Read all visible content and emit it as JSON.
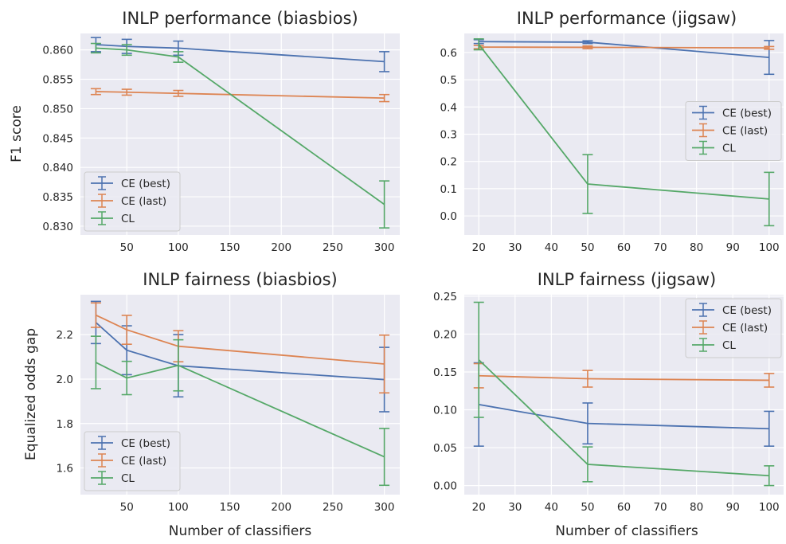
{
  "figure": {
    "colors": {
      "ce_best": "#4c72b0",
      "ce_last": "#dd8452",
      "cl": "#55a868",
      "panel_bg": "#eaeaf2",
      "grid": "#ffffff"
    },
    "ylabel_row1": "F1 score",
    "ylabel_row2": "Equalized odds gap",
    "xlabel": "Number of classifiers"
  },
  "chart_data": [
    {
      "type": "line",
      "title": "INLP performance (biasbios)",
      "xlabel": "",
      "ylabel": "F1 score",
      "x": [
        20,
        50,
        100,
        300
      ],
      "xlim": [
        5,
        315
      ],
      "ylim": [
        0.8285,
        0.8628
      ],
      "xticks": [
        50,
        100,
        150,
        200,
        250,
        300
      ],
      "yticks": [
        0.83,
        0.835,
        0.84,
        0.845,
        0.85,
        0.855,
        0.86
      ],
      "ytick_labels": [
        "0.830",
        "0.835",
        "0.840",
        "0.845",
        "0.850",
        "0.855",
        "0.860"
      ],
      "grid": true,
      "legend": "lower-left",
      "series": [
        {
          "name": "CE (best)",
          "values": [
            0.8609,
            0.8606,
            0.8603,
            0.858
          ],
          "err": [
            0.0012,
            0.0012,
            0.0012,
            0.0017
          ]
        },
        {
          "name": "CE (last)",
          "values": [
            0.8529,
            0.8528,
            0.8526,
            0.8518
          ],
          "err": [
            0.0005,
            0.0005,
            0.0005,
            0.0006
          ]
        },
        {
          "name": "CL",
          "values": [
            0.8603,
            0.86,
            0.8588,
            0.8337
          ],
          "err": [
            0.0008,
            0.0009,
            0.0009,
            0.004
          ]
        }
      ]
    },
    {
      "type": "line",
      "title": "INLP performance (jigsaw)",
      "xlabel": "",
      "ylabel": "",
      "x": [
        20,
        50,
        100
      ],
      "xlim": [
        16,
        104
      ],
      "ylim": [
        -0.07,
        0.67
      ],
      "xticks": [
        20,
        30,
        40,
        50,
        60,
        70,
        80,
        90,
        100
      ],
      "yticks": [
        0.0,
        0.1,
        0.2,
        0.3,
        0.4,
        0.5,
        0.6
      ],
      "ytick_labels": [
        "0.0",
        "0.1",
        "0.2",
        "0.3",
        "0.4",
        "0.5",
        "0.6"
      ],
      "grid": true,
      "legend": "center-right",
      "series": [
        {
          "name": "CE (best)",
          "values": [
            0.64,
            0.638,
            0.582
          ],
          "err": [
            0.007,
            0.005,
            0.062
          ]
        },
        {
          "name": "CE (last)",
          "values": [
            0.62,
            0.619,
            0.617
          ],
          "err": [
            0.006,
            0.005,
            0.005
          ]
        },
        {
          "name": "CL",
          "values": [
            0.63,
            0.117,
            0.062
          ],
          "err": [
            0.02,
            0.108,
            0.098
          ]
        }
      ]
    },
    {
      "type": "line",
      "title": "INLP fairness (biasbios)",
      "xlabel": "Number of classifiers",
      "ylabel": "Equalized odds gap",
      "x": [
        20,
        50,
        100,
        300
      ],
      "xlim": [
        5,
        315
      ],
      "ylim": [
        1.48,
        2.38
      ],
      "xticks": [
        50,
        100,
        150,
        200,
        250,
        300
      ],
      "yticks": [
        1.6,
        1.8,
        2.0,
        2.2
      ],
      "ytick_labels": [
        "1.6",
        "1.8",
        "2.0",
        "2.2"
      ],
      "grid": true,
      "legend": "lower-left",
      "series": [
        {
          "name": "CE (best)",
          "values": [
            2.255,
            2.13,
            2.06,
            1.998
          ],
          "err": [
            0.095,
            0.11,
            0.14,
            0.145
          ]
        },
        {
          "name": "CE (last)",
          "values": [
            2.288,
            2.222,
            2.148,
            2.068
          ],
          "err": [
            0.055,
            0.065,
            0.07,
            0.13
          ]
        },
        {
          "name": "CL",
          "values": [
            2.075,
            2.005,
            2.062,
            1.65
          ],
          "err": [
            0.118,
            0.075,
            0.115,
            0.128
          ]
        }
      ]
    },
    {
      "type": "line",
      "title": "INLP fairness (jigsaw)",
      "xlabel": "Number of classifiers",
      "ylabel": "",
      "x": [
        20,
        50,
        100
      ],
      "xlim": [
        16,
        104
      ],
      "ylim": [
        -0.012,
        0.252
      ],
      "xticks": [
        20,
        30,
        40,
        50,
        60,
        70,
        80,
        90,
        100
      ],
      "yticks": [
        0.0,
        0.05,
        0.1,
        0.15,
        0.2,
        0.25
      ],
      "ytick_labels": [
        "0.00",
        "0.05",
        "0.10",
        "0.15",
        "0.20",
        "0.25"
      ],
      "grid": true,
      "legend": "upper-right",
      "series": [
        {
          "name": "CE (best)",
          "values": [
            0.107,
            0.082,
            0.075
          ],
          "err": [
            0.055,
            0.027,
            0.023
          ]
        },
        {
          "name": "CE (last)",
          "values": [
            0.145,
            0.141,
            0.139
          ],
          "err": [
            0.016,
            0.011,
            0.009
          ]
        },
        {
          "name": "CL",
          "values": [
            0.166,
            0.028,
            0.013
          ],
          "err": [
            0.076,
            0.023,
            0.013
          ]
        }
      ]
    }
  ]
}
